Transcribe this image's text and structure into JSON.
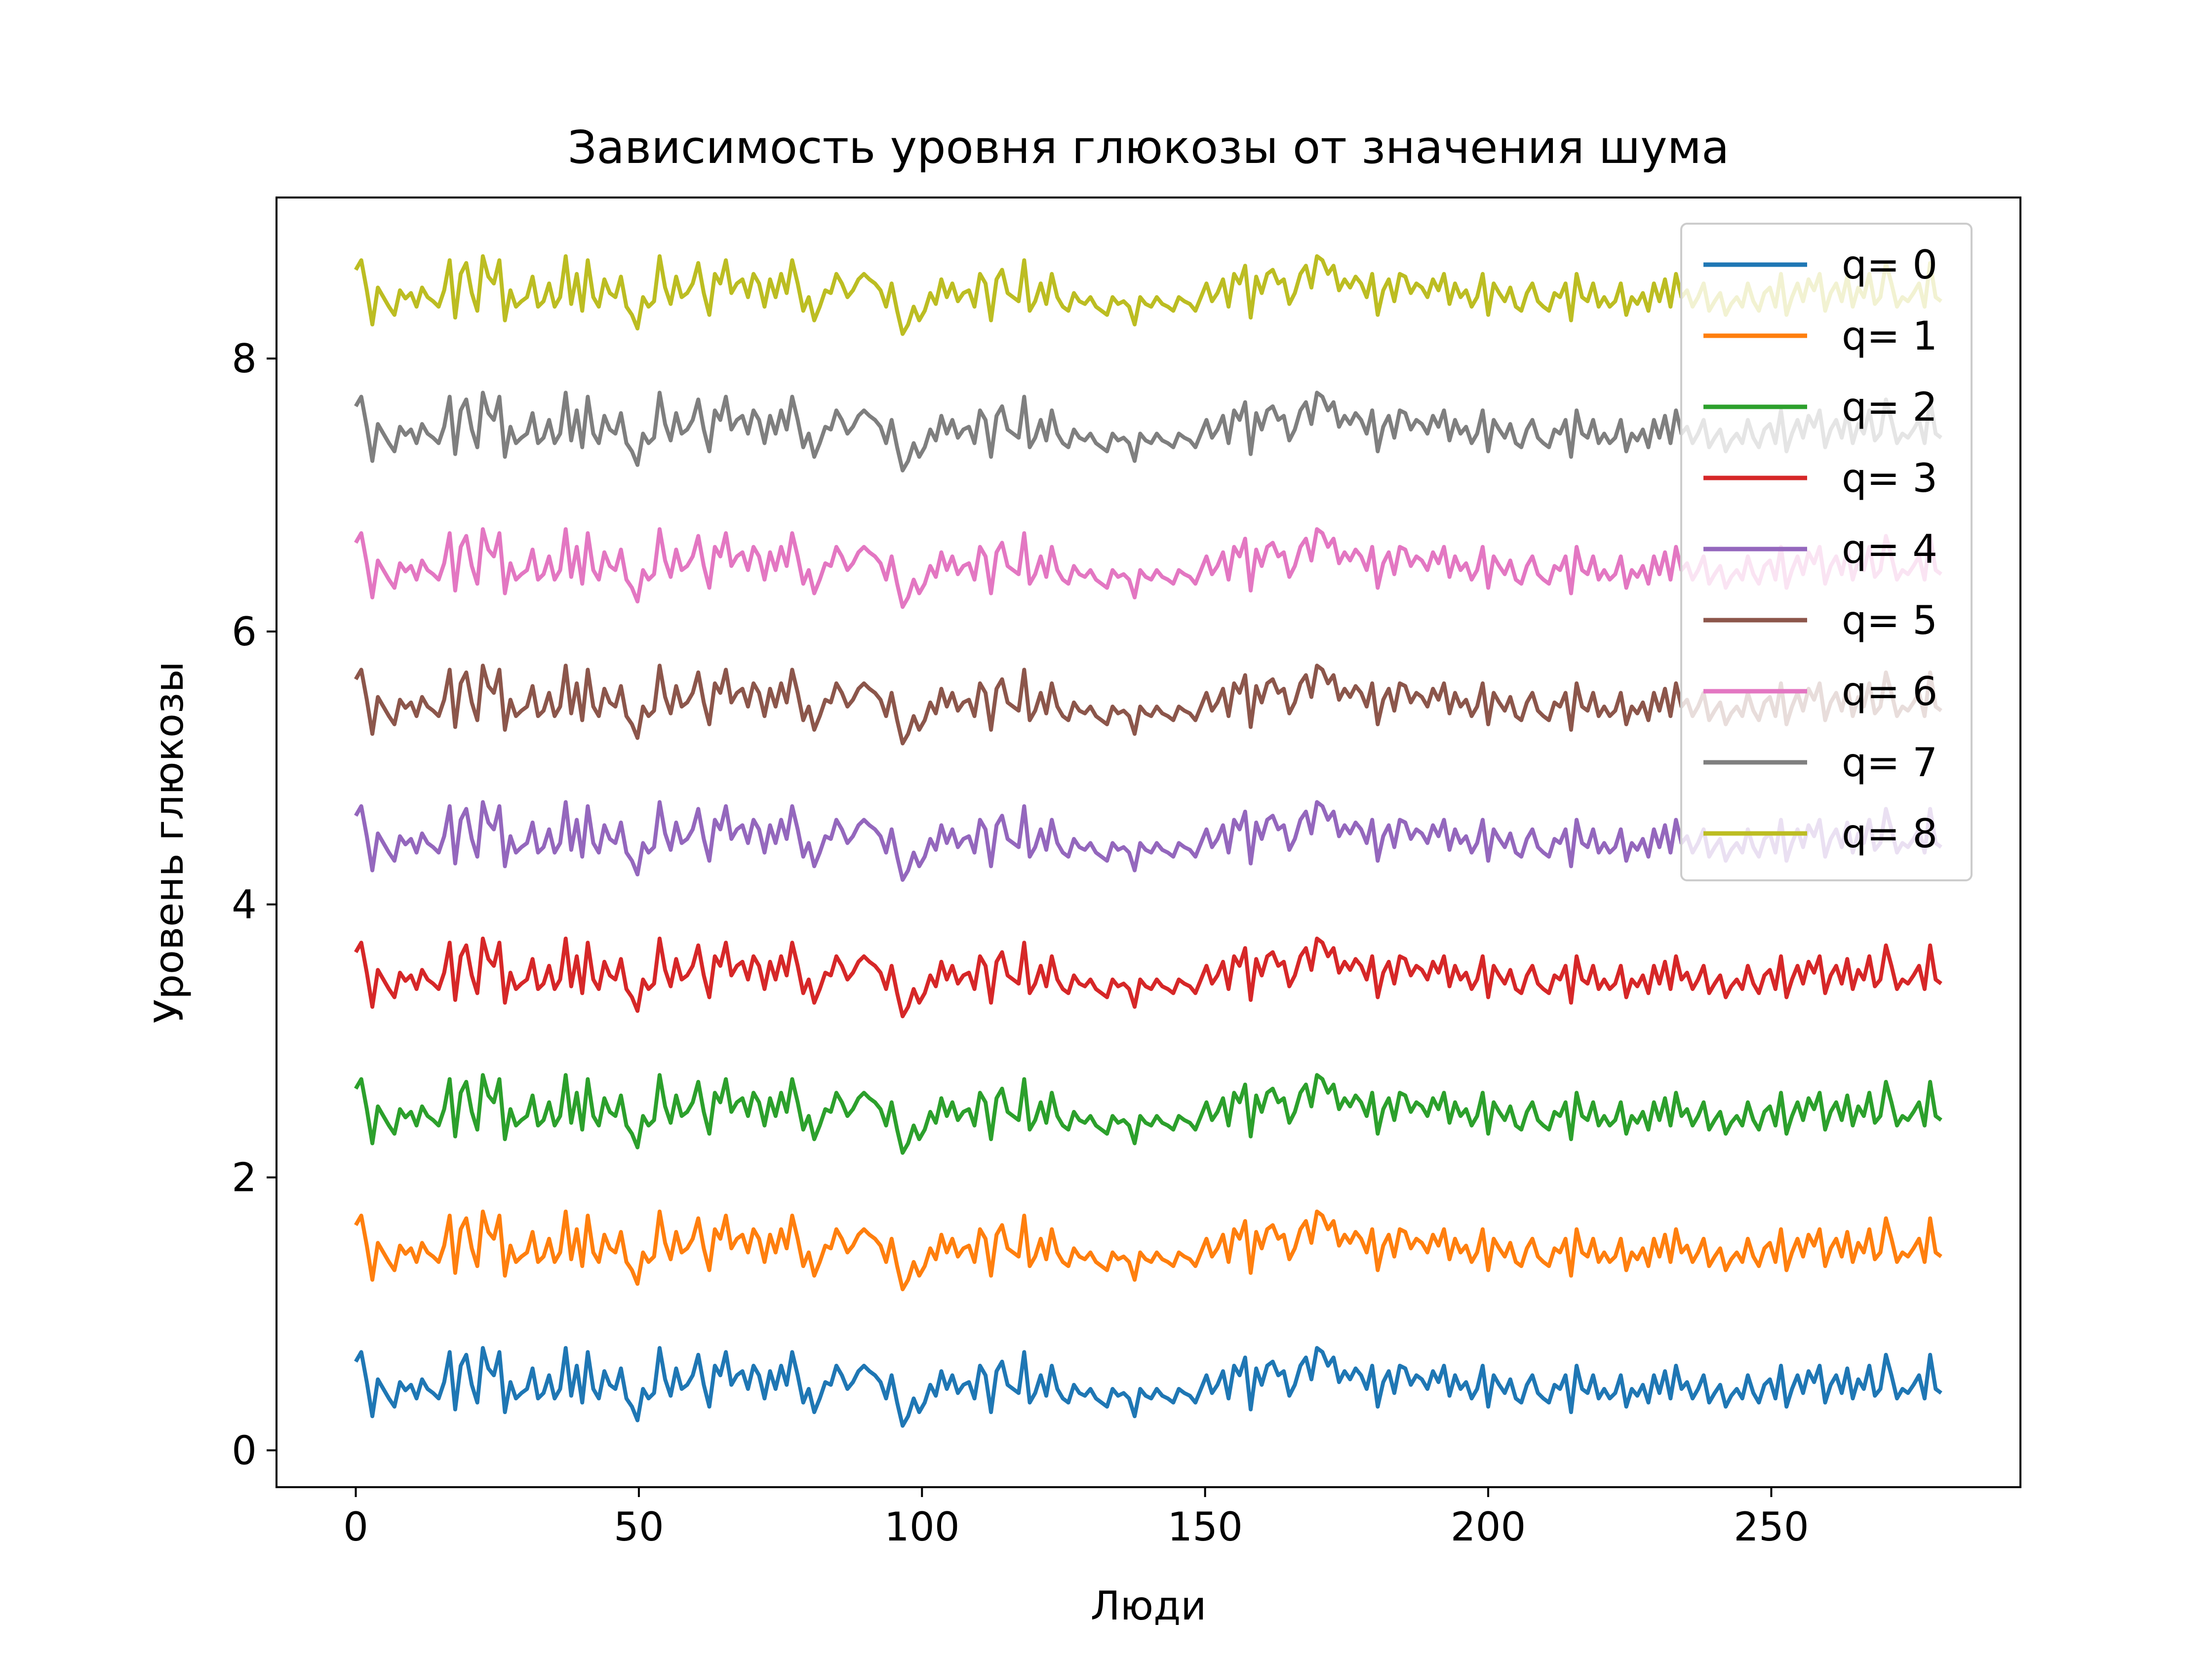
{
  "chart_data": {
    "type": "line",
    "title": "Зависимость уровня глюкозы от значения шума",
    "xlabel": "Люди",
    "ylabel": "Уровень глюкозы",
    "xlim": [
      -14,
      294
    ],
    "ylim": [
      -0.27,
      9.18
    ],
    "x_ticks": [
      0,
      50,
      100,
      150,
      200,
      250
    ],
    "y_ticks": [
      0,
      2,
      4,
      6,
      8
    ],
    "x_tick_labels": [
      "0",
      "50",
      "100",
      "150",
      "200",
      "250"
    ],
    "y_tick_labels": [
      "0",
      "2",
      "4",
      "6",
      "8"
    ],
    "grid": false,
    "legend_position": "top-right",
    "x_start": 0,
    "x_end": 280,
    "base_profile": [
      0.65,
      0.72,
      0.5,
      0.25,
      0.52,
      0.45,
      0.38,
      0.32,
      0.5,
      0.44,
      0.48,
      0.38,
      0.52,
      0.45,
      0.42,
      0.38,
      0.5,
      0.72,
      0.3,
      0.62,
      0.7,
      0.48,
      0.35,
      0.75,
      0.6,
      0.55,
      0.72,
      0.28,
      0.5,
      0.38,
      0.42,
      0.45,
      0.6,
      0.38,
      0.42,
      0.55,
      0.38,
      0.45,
      0.75,
      0.4,
      0.62,
      0.35,
      0.72,
      0.45,
      0.38,
      0.58,
      0.48,
      0.45,
      0.6,
      0.38,
      0.32,
      0.22,
      0.45,
      0.38,
      0.42,
      0.75,
      0.52,
      0.4,
      0.6,
      0.45,
      0.48,
      0.55,
      0.7,
      0.48,
      0.32,
      0.62,
      0.55,
      0.72,
      0.48,
      0.55,
      0.58,
      0.45,
      0.62,
      0.55,
      0.38,
      0.58,
      0.45,
      0.62,
      0.48,
      0.72,
      0.55,
      0.35,
      0.45,
      0.28,
      0.38,
      0.5,
      0.48,
      0.62,
      0.55,
      0.45,
      0.5,
      0.58,
      0.62,
      0.58,
      0.55,
      0.5,
      0.38,
      0.55,
      0.35,
      0.18,
      0.25,
      0.38,
      0.28,
      0.35,
      0.48,
      0.4,
      0.58,
      0.45,
      0.55,
      0.42,
      0.48,
      0.5,
      0.38,
      0.62,
      0.55,
      0.28,
      0.58,
      0.65,
      0.48,
      0.45,
      0.42,
      0.72,
      0.35,
      0.42,
      0.55,
      0.4,
      0.62,
      0.45,
      0.38,
      0.35,
      0.48,
      0.42,
      0.4,
      0.45,
      0.38,
      0.35,
      0.32,
      0.45,
      0.4,
      0.42,
      0.38,
      0.25,
      0.45,
      0.4,
      0.38,
      0.45,
      0.4,
      0.38,
      0.35,
      0.45,
      0.42,
      0.4,
      0.35,
      0.45,
      0.55,
      0.42,
      0.48,
      0.58,
      0.38,
      0.62,
      0.55,
      0.68,
      0.3,
      0.6,
      0.48,
      0.62,
      0.65,
      0.55,
      0.58,
      0.4,
      0.48,
      0.62,
      0.68,
      0.52,
      0.75,
      0.72,
      0.62,
      0.68,
      0.5,
      0.58,
      0.52,
      0.6,
      0.55,
      0.45,
      0.62,
      0.32,
      0.5,
      0.58,
      0.42,
      0.62,
      0.6,
      0.48,
      0.55,
      0.52,
      0.45,
      0.58,
      0.5,
      0.62,
      0.4,
      0.55,
      0.45,
      0.5,
      0.38,
      0.45,
      0.62,
      0.32,
      0.55,
      0.48,
      0.42,
      0.52,
      0.38,
      0.35,
      0.48,
      0.55,
      0.42,
      0.38,
      0.35,
      0.48,
      0.45,
      0.55,
      0.28,
      0.62,
      0.45,
      0.42,
      0.55,
      0.38,
      0.45,
      0.38,
      0.42,
      0.55,
      0.32,
      0.45,
      0.4,
      0.48,
      0.35,
      0.55,
      0.42,
      0.58,
      0.38,
      0.62,
      0.45,
      0.5,
      0.38,
      0.45,
      0.55,
      0.35,
      0.42,
      0.48,
      0.32,
      0.4,
      0.45,
      0.38,
      0.55,
      0.42,
      0.35,
      0.48,
      0.52,
      0.38,
      0.62,
      0.32,
      0.45,
      0.55,
      0.42,
      0.58,
      0.5,
      0.62,
      0.35,
      0.48,
      0.55,
      0.42,
      0.6,
      0.38,
      0.52,
      0.45,
      0.62,
      0.4,
      0.45,
      0.7,
      0.55,
      0.38,
      0.45,
      0.42,
      0.48,
      0.55,
      0.38,
      0.7,
      0.45,
      0.42
    ],
    "series": [
      {
        "name": "q= 0",
        "offset": 0,
        "color": "#1f77b4"
      },
      {
        "name": "q= 1",
        "offset": 1,
        "color": "#ff7f0e"
      },
      {
        "name": "q= 2",
        "offset": 2,
        "color": "#2ca02c"
      },
      {
        "name": "q= 3",
        "offset": 3,
        "color": "#d62728"
      },
      {
        "name": "q= 4",
        "offset": 4,
        "color": "#9467bd"
      },
      {
        "name": "q= 5",
        "offset": 5,
        "color": "#8c564b"
      },
      {
        "name": "q= 6",
        "offset": 6,
        "color": "#e377c2"
      },
      {
        "name": "q= 7",
        "offset": 7,
        "color": "#7f7f7f"
      },
      {
        "name": "q= 8",
        "offset": 8,
        "color": "#bcbd22"
      }
    ]
  }
}
